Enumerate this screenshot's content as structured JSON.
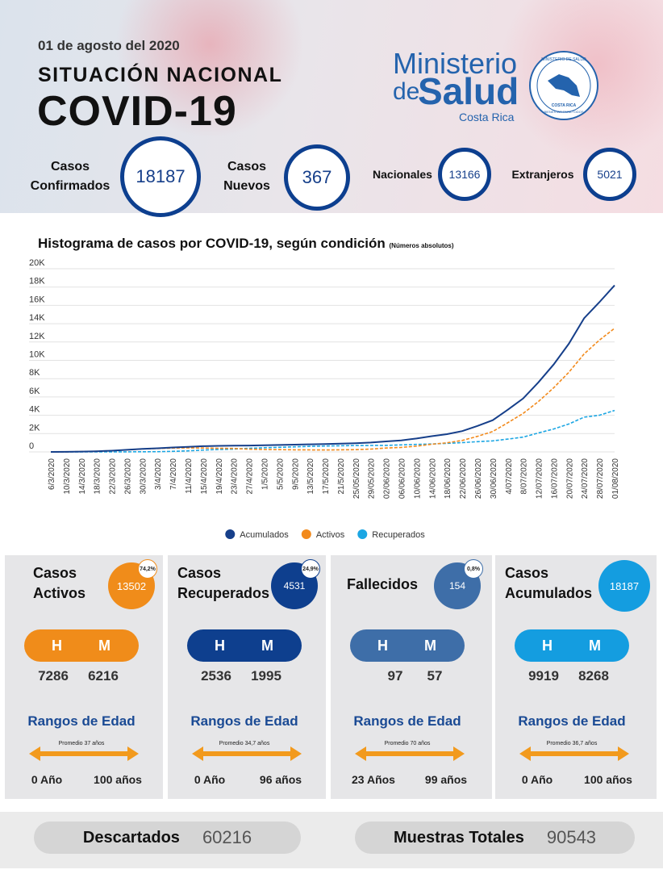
{
  "header": {
    "date": "01 de agosto del 2020",
    "subtitle": "SITUACIÓN NACIONAL",
    "title": "COVID-19",
    "logo": {
      "line1": "Ministerio",
      "line2a": "de",
      "line2b": "Salud",
      "line3": "Costa Rica"
    },
    "seal": {
      "top": "MINISTERIO DE SALUD",
      "middle": "COSTA RICA",
      "bottom": "BIENESTAR PARA TODOS"
    }
  },
  "summary": [
    {
      "label": [
        "Casos",
        "Confirmados"
      ],
      "value": 18187
    },
    {
      "label": [
        "Casos",
        "Nuevos"
      ],
      "value": 367
    },
    {
      "label": [
        "Nacionales"
      ],
      "value": 13166
    },
    {
      "label": [
        "Extranjeros"
      ],
      "value": 5021
    }
  ],
  "chart_data": {
    "type": "line",
    "title": "Histograma de casos por COVID-19, según condición",
    "note": "(Números absolutos)",
    "categories": [
      "6/3/2020",
      "10/3/2020",
      "14/3/2020",
      "18/3/2020",
      "22/3/2020",
      "26/3/2020",
      "30/3/2020",
      "3/4/2020",
      "7/4/2020",
      "11/4/2020",
      "15/4/2020",
      "19/4/2020",
      "23/4/2020",
      "27/4/2020",
      "1/5/2020",
      "5/5/2020",
      "9/5/2020",
      "13/5/2020",
      "17/5/2020",
      "21/5/2020",
      "25/05/2020",
      "29/05/2020",
      "02/06/2020",
      "06/06/2020",
      "10/06/2020",
      "14/06/2020",
      "18/06/2020",
      "22/06/2020",
      "26/06/2020",
      "30/06/2020",
      "4/07/2020",
      "8/07/2020",
      "12/07/2020",
      "16/07/2020",
      "20/07/2020",
      "24/07/2020",
      "28/07/2020",
      "01/08/2020"
    ],
    "series": [
      {
        "name": "Acumulados",
        "color": "#163f8a",
        "style": "solid",
        "values": [
          1,
          9,
          35,
          69,
          134,
          231,
          330,
          396,
          483,
          558,
          626,
          662,
          687,
          697,
          719,
          761,
          792,
          830,
          866,
          911,
          951,
          1022,
          1146,
          1263,
          1461,
          1715,
          1942,
          2277,
          2836,
          3459,
          4621,
          5836,
          7596,
          9546,
          11811,
          14600,
          16344,
          18187
        ]
      },
      {
        "name": "Activos",
        "color": "#f28a1c",
        "style": "dashed",
        "values": [
          1,
          9,
          35,
          68,
          131,
          224,
          315,
          368,
          420,
          440,
          420,
          400,
          380,
          300,
          260,
          250,
          230,
          220,
          215,
          230,
          250,
          310,
          420,
          490,
          630,
          840,
          1000,
          1250,
          1700,
          2230,
          3200,
          4200,
          5500,
          7000,
          8700,
          10700,
          12200,
          13502
        ]
      },
      {
        "name": "Recuperados",
        "color": "#1ba6e3",
        "style": "dashed",
        "values": [
          0,
          0,
          0,
          1,
          3,
          7,
          15,
          28,
          63,
          118,
          206,
          260,
          305,
          396,
          455,
          505,
          556,
          604,
          645,
          674,
          694,
          705,
          716,
          763,
          821,
          862,
          930,
          1010,
          1120,
          1210,
          1400,
          1610,
          2070,
          2500,
          3050,
          3800,
          4000,
          4531
        ]
      }
    ],
    "ylim": [
      0,
      20000
    ],
    "yticks": [
      0,
      {
        "value": 2000,
        "label": "2K"
      },
      {
        "value": 4000,
        "label": "4K"
      },
      {
        "value": 6000,
        "label": "6K"
      },
      {
        "value": 8000,
        "label": "8K"
      },
      {
        "value": 10000,
        "label": "10K"
      },
      {
        "value": 12000,
        "label": "12K"
      },
      {
        "value": 14000,
        "label": "14K"
      },
      {
        "value": 16000,
        "label": "16K"
      },
      {
        "value": 18000,
        "label": "18K"
      },
      {
        "value": 20000,
        "label": "20K"
      }
    ],
    "grid": true,
    "legend": "bottom"
  },
  "cards": [
    {
      "title": [
        "Casos",
        "Activos"
      ],
      "value": 13502,
      "badge": "74,2%",
      "color": "#f08c1a",
      "sex_labels": [
        "H",
        "M"
      ],
      "men": 7286,
      "women": 6216,
      "range_title": "Rangos de Edad",
      "average": "Promedio 37 años",
      "min_age": "0 Año",
      "max_age": "100 años"
    },
    {
      "title": [
        "Casos",
        "Recuperados"
      ],
      "value": 4531,
      "badge": "24,9%",
      "color": "#0e3f8e",
      "sex_labels": [
        "H",
        "M"
      ],
      "men": 2536,
      "women": 1995,
      "range_title": "Rangos de Edad",
      "average": "Promedio 34,7 años",
      "min_age": "0 Año",
      "max_age": "96 años"
    },
    {
      "title": [
        "Fallecidos"
      ],
      "value": 154,
      "badge": "0,8%",
      "color": "#3e6ea8",
      "sex_labels": [
        "H",
        "M"
      ],
      "men": 97,
      "women": 57,
      "range_title": "Rangos de Edad",
      "average": "Promedio 70 años",
      "min_age": "23 Años",
      "max_age": "99 años"
    },
    {
      "title": [
        "Casos",
        "Acumulados"
      ],
      "value": 18187,
      "color": "#149de0",
      "sex_labels": [
        "H",
        "M"
      ],
      "men": 9919,
      "women": 8268,
      "range_title": "Rangos de Edad",
      "average": "Promedio 36,7 años",
      "min_age": "0 Año",
      "max_age": "100 años"
    }
  ],
  "footer": [
    {
      "label": "Descartados",
      "value": 60216
    },
    {
      "label": "Muestras Totales",
      "value": 90543
    }
  ]
}
